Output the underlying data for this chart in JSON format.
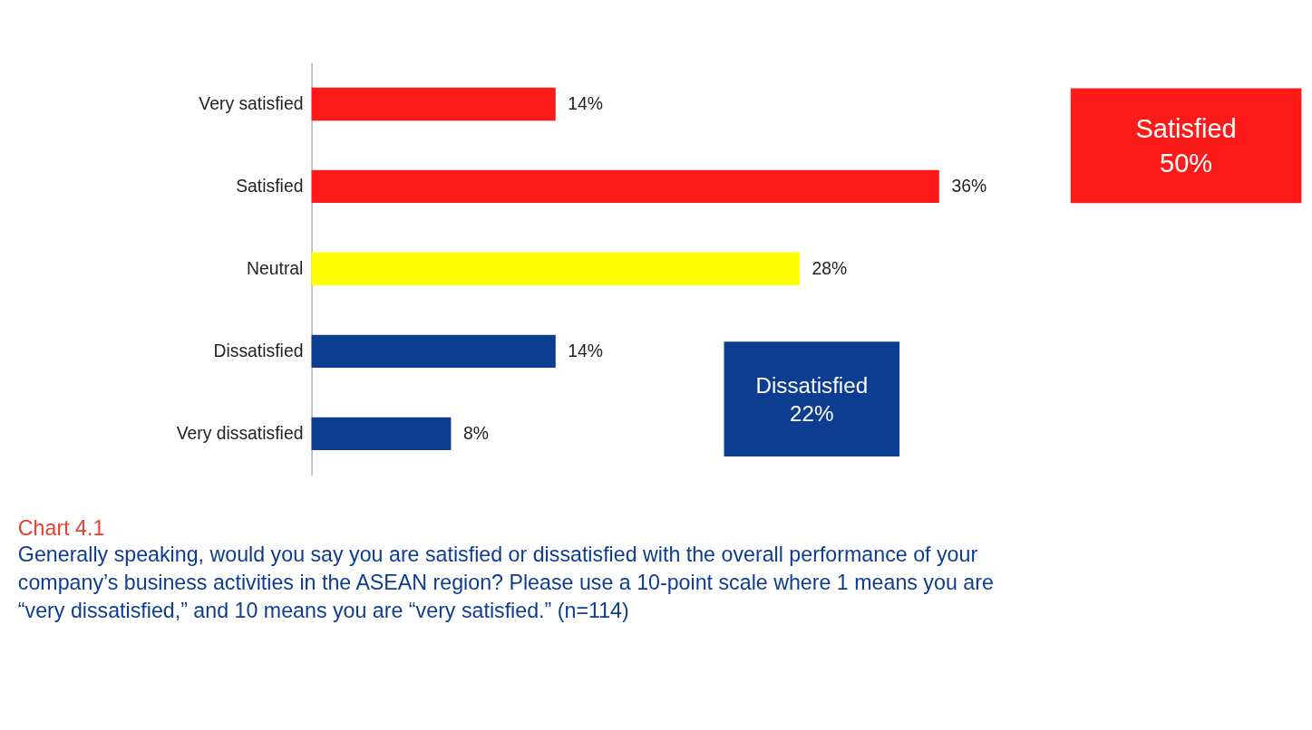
{
  "chart_data": {
    "type": "bar",
    "orientation": "horizontal",
    "title": "Chart 4.1",
    "subtitle": "Generally speaking, would you say you are satisfied or dissatisfied with the overall performance of your company’s business activities in the ASEAN region? Please use a 10-point scale where 1 means you are “very dissatisfied,” and 10 means you are “very satisfied.” (n=114)",
    "categories": [
      "Very satisfied",
      "Satisfied",
      "Neutral",
      "Dissatisfied",
      "Very dissatisfied"
    ],
    "values": [
      14,
      36,
      28,
      14,
      8
    ],
    "value_labels": [
      "14%",
      "36%",
      "28%",
      "14%",
      "8%"
    ],
    "colors": [
      "#ff1a1a",
      "#ff1a1a",
      "#ffff00",
      "#0d3d91",
      "#0d3d91"
    ],
    "annotations": [
      "Satisfied 50%",
      "Dissatisfied 22%"
    ],
    "grid": false,
    "legend": false
  }
}
